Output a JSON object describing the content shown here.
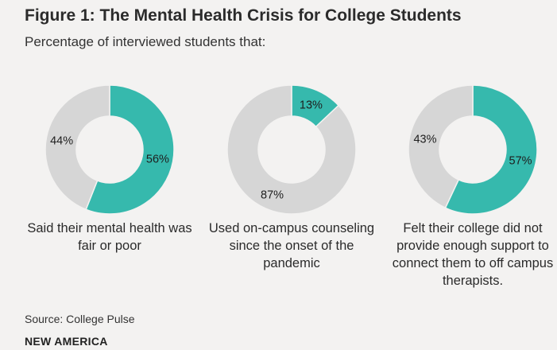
{
  "title": "Figure 1: The Mental Health Crisis for College Students",
  "subtitle": "Percentage of interviewed students that:",
  "source": "Source: College Pulse",
  "brand": "NEW AMERICA",
  "colors": {
    "highlight": "#36b9ad",
    "remainder": "#d6d6d6",
    "background": "#f3f2f1"
  },
  "chart_data": [
    {
      "type": "pie",
      "caption": "Said their mental health was fair or poor",
      "slices": [
        {
          "label": "56%",
          "value": 56,
          "role": "highlight"
        },
        {
          "label": "44%",
          "value": 44,
          "role": "remainder"
        }
      ]
    },
    {
      "type": "pie",
      "caption": "Used on-campus counseling since the onset of the pandemic",
      "slices": [
        {
          "label": "13%",
          "value": 13,
          "role": "highlight"
        },
        {
          "label": "87%",
          "value": 87,
          "role": "remainder"
        }
      ]
    },
    {
      "type": "pie",
      "caption": "Felt their college did not provide enough support to connect them to off campus therapists.",
      "slices": [
        {
          "label": "57%",
          "value": 57,
          "role": "highlight"
        },
        {
          "label": "43%",
          "value": 43,
          "role": "remainder"
        }
      ]
    }
  ]
}
